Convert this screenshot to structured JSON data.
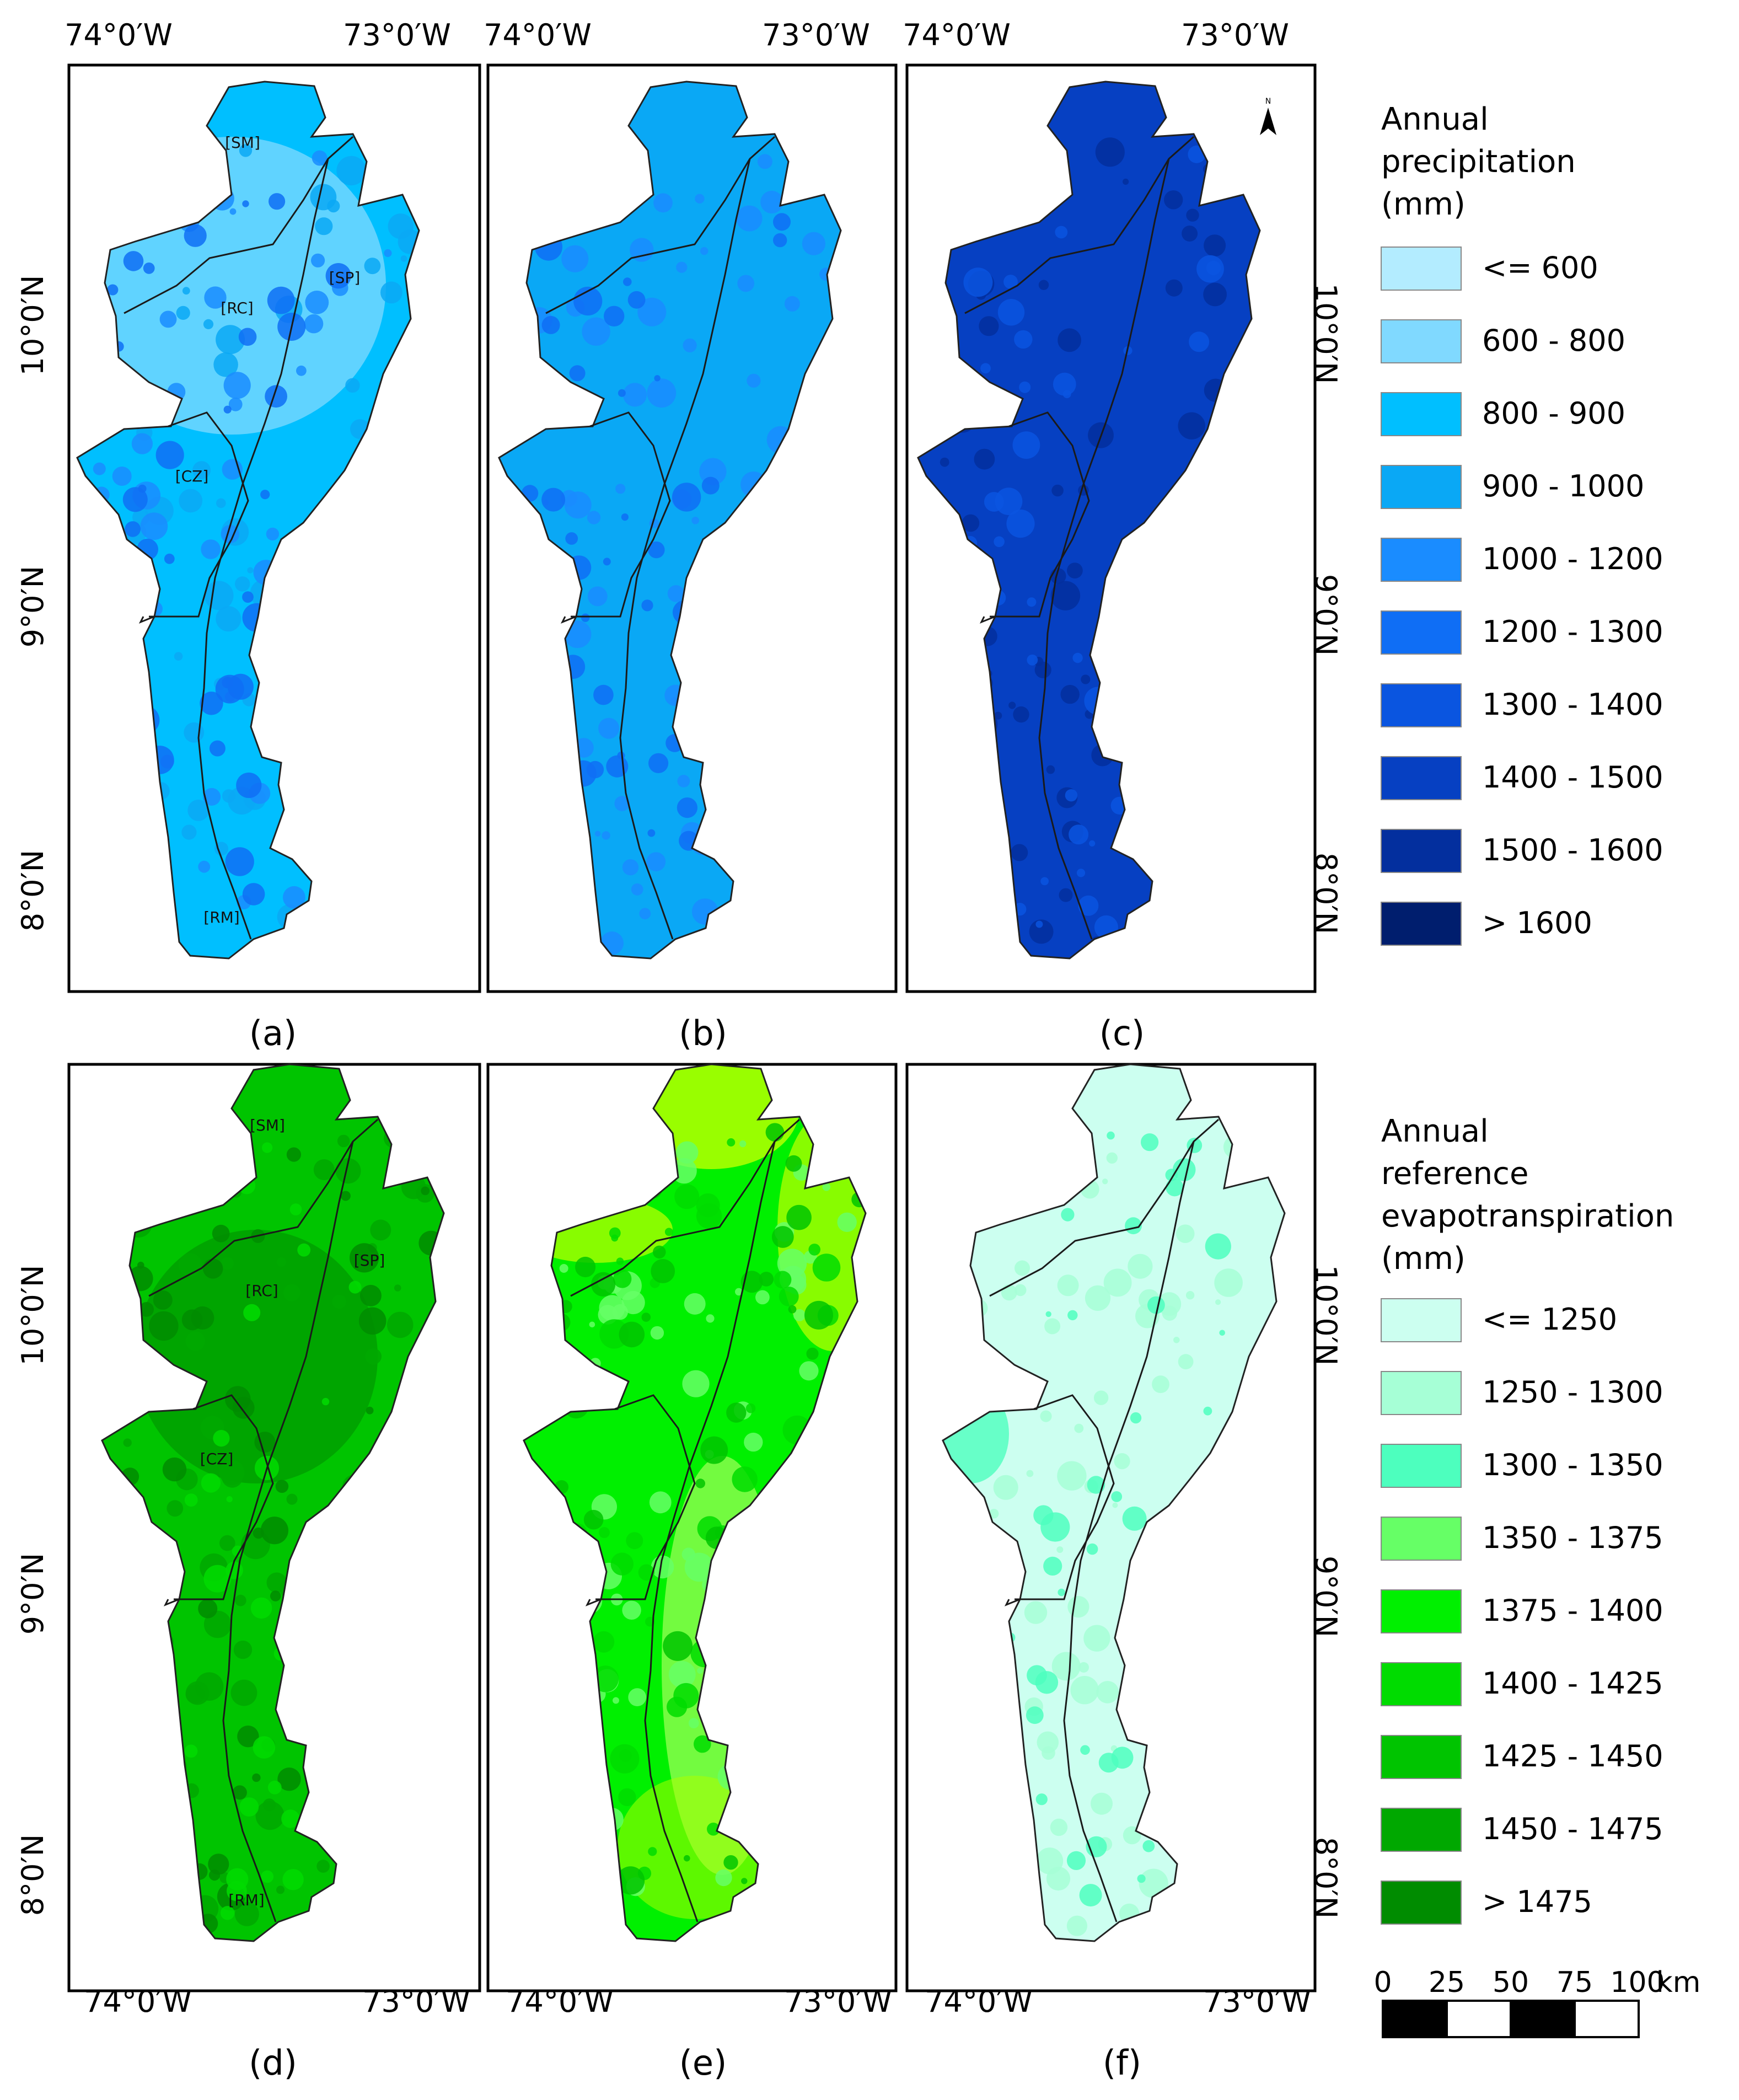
{
  "panels": [
    {
      "label": "(a)",
      "palette": "precip",
      "base": 2,
      "blobs": [
        3,
        4,
        5
      ],
      "show_regions": true
    },
    {
      "label": "(b)",
      "palette": "precip",
      "base": 3,
      "blobs": [
        4,
        5
      ],
      "show_regions": false
    },
    {
      "label": "(c)",
      "palette": "precip",
      "base": 7,
      "blobs": [
        8,
        6
      ],
      "show_regions": false
    },
    {
      "label": "(d)",
      "palette": "eto",
      "base": 6,
      "blobs": [
        7,
        8,
        5
      ],
      "show_regions": true
    },
    {
      "label": "(e)",
      "palette": "eto",
      "base": 4,
      "blobs": [
        3,
        5,
        6
      ],
      "show_regions": false
    },
    {
      "label": "(f)",
      "palette": "eto",
      "base": 0,
      "blobs": [
        1,
        2
      ],
      "show_regions": false
    }
  ],
  "regions": [
    "[SM]",
    "[RC]",
    "[SP]",
    "[CZ]",
    "[RM]"
  ],
  "top_longitude_labels": [
    "74°0′W",
    "73°0′W"
  ],
  "bottom_longitude_labels": [
    "74°0′W",
    "73°0′W"
  ],
  "latitude_labels_top_row": [
    "10°0′N",
    "9°0′N",
    "8°0′N"
  ],
  "latitude_labels_bottom_row": [
    "10°0′N",
    "9°0′N",
    "8°0′N"
  ],
  "north_arrow_label": "N",
  "legend_precipitation": {
    "title": [
      "Annual",
      "precipitation",
      "(mm)"
    ],
    "classes": [
      {
        "label": "<= 600",
        "color": "#b3ecff"
      },
      {
        "label": "600 - 800",
        "color": "#80d9ff"
      },
      {
        "label": "800 - 900",
        "color": "#00bfff"
      },
      {
        "label": "900 - 1000",
        "color": "#0aa8f5"
      },
      {
        "label": "1000 - 1200",
        "color": "#1a8cff"
      },
      {
        "label": "1200 - 1300",
        "color": "#0f6ef5"
      },
      {
        "label": "1300 - 1400",
        "color": "#0a55e0"
      },
      {
        "label": "1400 - 1500",
        "color": "#0640c2"
      },
      {
        "label": "1500 - 1600",
        "color": "#032f9e"
      },
      {
        "label": "> 1600",
        "color": "#001e6e"
      }
    ]
  },
  "legend_eto": {
    "title": [
      "Annual",
      "reference",
      "evapotranspiration",
      "(mm)"
    ],
    "classes": [
      {
        "label": "<= 1250",
        "color": "#ccfff0"
      },
      {
        "label": "1250 - 1300",
        "color": "#a6ffd6"
      },
      {
        "label": "1300 - 1350",
        "color": "#4dffbe"
      },
      {
        "label": "1350 - 1375",
        "color": "#66ff66"
      },
      {
        "label": "1375 - 1400",
        "color": "#00f000"
      },
      {
        "label": "1400 - 1425",
        "color": "#00dc00"
      },
      {
        "label": "1425 - 1450",
        "color": "#00c400"
      },
      {
        "label": "1450 - 1475",
        "color": "#00a800"
      },
      {
        "label": "> 1475",
        "color": "#008c00"
      }
    ],
    "extra_colors": {
      "yellow_green": "#aaff00",
      "light_green": "#99ff55"
    }
  },
  "scale_bar": {
    "ticks": [
      "0",
      "25",
      "50",
      "75",
      "100"
    ],
    "unit": "km"
  }
}
